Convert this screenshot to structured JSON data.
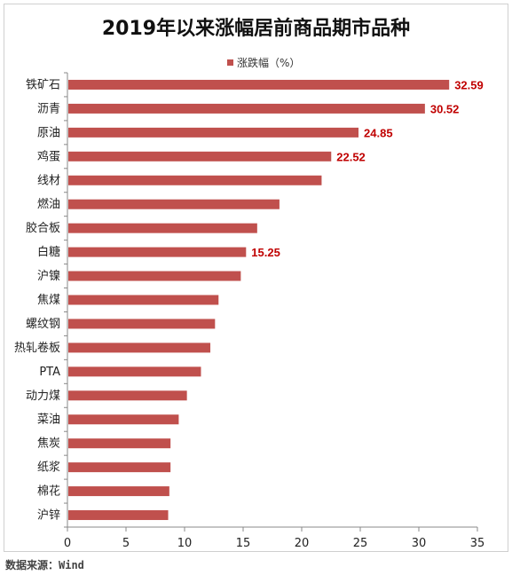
{
  "chart_data": {
    "type": "bar",
    "orientation": "horizontal",
    "title": "2019年以来涨幅居前商品期市品种",
    "legend": "涨跌幅（%）",
    "legend_position": "top-center",
    "categories": [
      "铁矿石",
      "沥青",
      "原油",
      "鸡蛋",
      "线材",
      "燃油",
      "胶合板",
      "白糖",
      "沪镍",
      "焦煤",
      "螺纹钢",
      "热轧卷板",
      "PTA",
      "动力煤",
      "菜油",
      "焦炭",
      "纸浆",
      "棉花",
      "沪锌"
    ],
    "values": [
      32.59,
      30.52,
      24.85,
      22.52,
      21.7,
      18.1,
      16.2,
      15.25,
      14.8,
      12.9,
      12.6,
      12.2,
      11.4,
      10.2,
      9.5,
      8.8,
      8.8,
      8.7,
      8.6
    ],
    "data_labels": [
      "32.59",
      "30.52",
      "24.85",
      "22.52",
      "",
      "",
      "",
      "15.25",
      "",
      "",
      "",
      "",
      "",
      "",
      "",
      "",
      "",
      "",
      ""
    ],
    "xlim": [
      0,
      35
    ],
    "xticks": [
      "0",
      "5",
      "10",
      "15",
      "20",
      "25",
      "30",
      "35"
    ],
    "grid": false,
    "color": "#c0504d",
    "label_color": "#c00000"
  },
  "source": "数据来源：Wind"
}
